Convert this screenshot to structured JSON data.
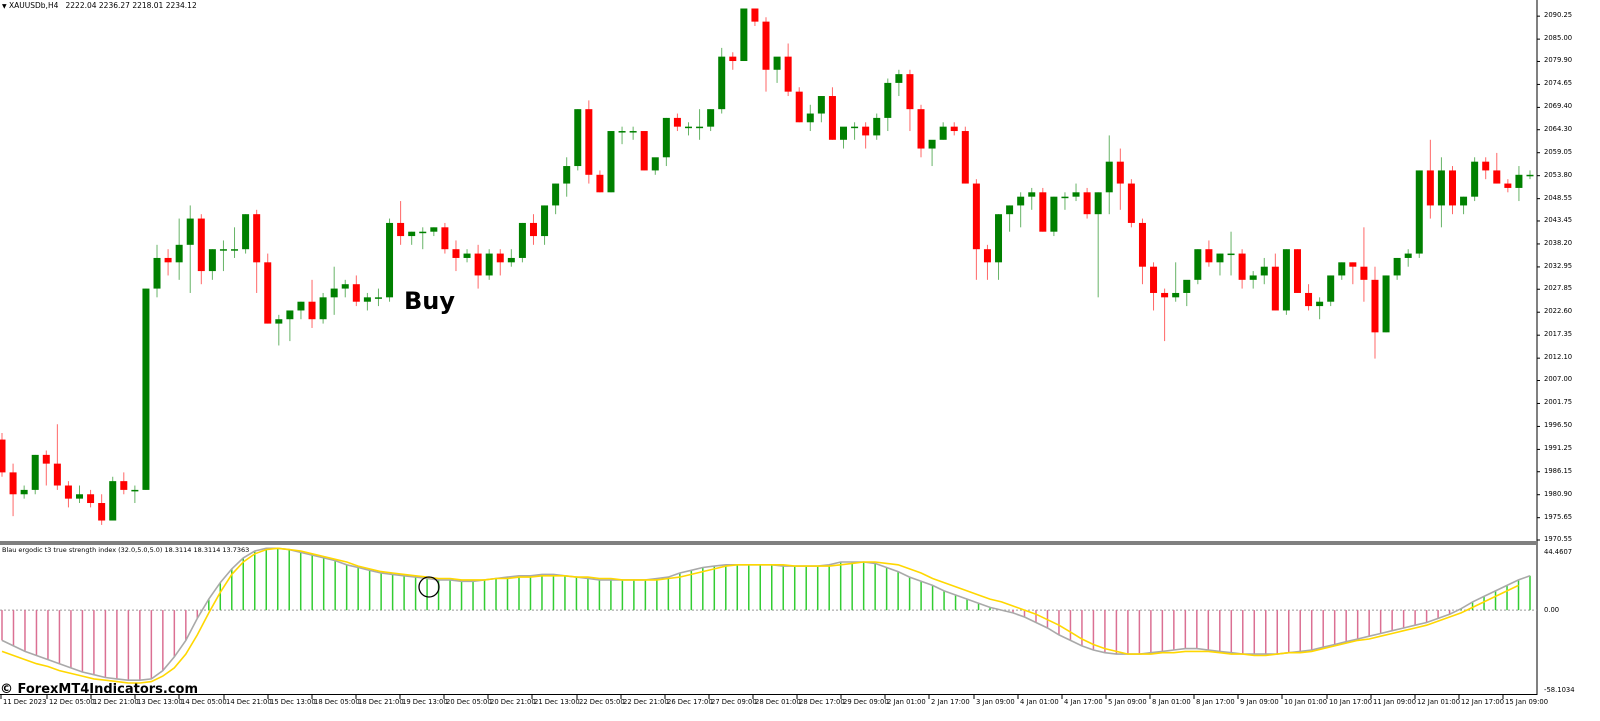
{
  "header": {
    "symbol_menu_icon": "triangle-down-icon",
    "symbol": "XAUUSDb,H4",
    "ohlc": "2222.04 2236.27 2218.01 2234.12"
  },
  "annotation": {
    "label": "Buy"
  },
  "watermark": "© ForexMT4Indicators.com",
  "indicator": {
    "label": "Blau ergodic t3 true strength index (32.0,5.0,5.0) 18.3114 18.3114 13.7363",
    "axis": [
      "44.4607",
      "0.00",
      "-58.1034"
    ],
    "colors": {
      "positive_hist": "#32CD32",
      "negative_hist": "#DB7093",
      "main_line": "#A9A9A9",
      "signal_line": "#FFD700"
    }
  },
  "price_axis": [
    "2090.25",
    "2085.00",
    "2079.90",
    "2074.65",
    "2069.40",
    "2064.30",
    "2059.05",
    "2053.80",
    "2048.55",
    "2043.45",
    "2038.20",
    "2032.95",
    "2027.85",
    "2022.60",
    "2017.35",
    "2012.10",
    "2007.00",
    "2001.75",
    "1996.50",
    "1991.25",
    "1986.15",
    "1980.90",
    "1975.65",
    "1970.55"
  ],
  "time_axis": [
    "11 Dec 2023",
    "12 Dec 05:00",
    "12 Dec 21:00",
    "13 Dec 13:00",
    "14 Dec 05:00",
    "14 Dec 21:00",
    "15 Dec 13:00",
    "18 Dec 05:00",
    "18 Dec 21:00",
    "19 Dec 13:00",
    "20 Dec 05:00",
    "20 Dec 21:00",
    "21 Dec 13:00",
    "22 Dec 05:00",
    "22 Dec 21:00",
    "26 Dec 17:00",
    "27 Dec 09:00",
    "28 Dec 01:00",
    "28 Dec 17:00",
    "29 Dec 09:00",
    "2 Jan 01:00",
    "2 Jan 17:00",
    "3 Jan 09:00",
    "4 Jan 01:00",
    "4 Jan 17:00",
    "5 Jan 09:00",
    "8 Jan 01:00",
    "8 Jan 17:00",
    "9 Jan 09:00",
    "10 Jan 01:00",
    "10 Jan 17:00",
    "11 Jan 09:00",
    "12 Jan 01:00",
    "12 Jan 17:00",
    "15 Jan 09:00"
  ],
  "colors": {
    "bull": "#008000",
    "bear": "#FF0000",
    "separator": "#808080"
  },
  "chart_data": [
    {
      "type": "candlestick",
      "title": "XAUUSDb,H4",
      "ylim": [
        1970.55,
        2092.5
      ],
      "xlabel": "",
      "ylabel": "",
      "note": "approx. OHLC read from pixels, one per H4 bar",
      "candles": [
        [
          1993.5,
          1995,
          1985,
          1986
        ],
        [
          1986,
          1988,
          1976,
          1981
        ],
        [
          1981,
          1983,
          1980,
          1982
        ],
        [
          1982,
          1990,
          1981,
          1990
        ],
        [
          1990,
          1991,
          1983,
          1988
        ],
        [
          1988,
          1997,
          1982,
          1983
        ],
        [
          1983,
          1984,
          1978,
          1980
        ],
        [
          1980,
          1983,
          1979,
          1981
        ],
        [
          1981,
          1982,
          1978,
          1979
        ],
        [
          1979,
          1981,
          1974,
          1975
        ],
        [
          1975,
          1985,
          1975,
          1984
        ],
        [
          1984,
          1986,
          1981,
          1982
        ],
        [
          1982,
          1983,
          1979,
          1982
        ],
        [
          1982,
          2028,
          1982,
          2028
        ],
        [
          2028,
          2038,
          2026,
          2035
        ],
        [
          2035,
          2037,
          2031,
          2034
        ],
        [
          2034,
          2044,
          2030,
          2038
        ],
        [
          2038,
          2047,
          2027,
          2044
        ],
        [
          2044,
          2045,
          2029,
          2032
        ],
        [
          2032,
          2037,
          2030,
          2037
        ],
        [
          2037,
          2039,
          2032,
          2037
        ],
        [
          2037,
          2042,
          2035,
          2037
        ],
        [
          2037,
          2045,
          2036,
          2045
        ],
        [
          2045,
          2046,
          2027,
          2034
        ],
        [
          2034,
          2036,
          2020,
          2020
        ],
        [
          2020,
          2022,
          2015,
          2021
        ],
        [
          2021,
          2022,
          2016,
          2023
        ],
        [
          2023,
          2025,
          2021,
          2025
        ],
        [
          2025,
          2030,
          2019,
          2021
        ],
        [
          2021,
          2027,
          2020,
          2026
        ],
        [
          2026,
          2033,
          2022,
          2028
        ],
        [
          2028,
          2030,
          2026,
          2029
        ],
        [
          2029,
          2031,
          2024,
          2025
        ],
        [
          2025,
          2027,
          2023,
          2026
        ],
        [
          2026,
          2028,
          2024,
          2026
        ],
        [
          2026,
          2044,
          2025,
          2043
        ],
        [
          2043,
          2048,
          2038,
          2040
        ],
        [
          2040,
          2041,
          2038,
          2041
        ],
        [
          2041,
          2042,
          2037,
          2041
        ],
        [
          2041,
          2042,
          2040,
          2042
        ],
        [
          2042,
          2043,
          2036,
          2037
        ],
        [
          2037,
          2039,
          2032,
          2035
        ],
        [
          2035,
          2037,
          2034,
          2036
        ],
        [
          2036,
          2038,
          2028,
          2031
        ],
        [
          2031,
          2037,
          2030,
          2036
        ],
        [
          2036,
          2037,
          2031,
          2034
        ],
        [
          2034,
          2037,
          2033,
          2035
        ],
        [
          2035,
          2043,
          2034,
          2043
        ],
        [
          2043,
          2045,
          2038,
          2040
        ],
        [
          2040,
          2047,
          2038,
          2047
        ],
        [
          2047,
          2052,
          2045,
          2052
        ],
        [
          2052,
          2058,
          2049,
          2056
        ],
        [
          2056,
          2069,
          2055,
          2069
        ],
        [
          2069,
          2071,
          2052,
          2054
        ],
        [
          2054,
          2055,
          2050,
          2050
        ],
        [
          2050,
          2064,
          2050,
          2064
        ],
        [
          2064,
          2065,
          2061,
          2064
        ],
        [
          2064,
          2065,
          2062,
          2064
        ],
        [
          2064,
          2064,
          2055,
          2055
        ],
        [
          2055,
          2056,
          2054,
          2058
        ],
        [
          2058,
          2067,
          2056,
          2067
        ],
        [
          2067,
          2068,
          2064,
          2065
        ],
        [
          2065,
          2066,
          2063,
          2065
        ],
        [
          2065,
          2069,
          2062,
          2065
        ],
        [
          2065,
          2069,
          2064,
          2069
        ],
        [
          2069,
          2083,
          2068,
          2081
        ],
        [
          2081,
          2082,
          2078,
          2080
        ],
        [
          2080,
          2092,
          2080,
          2092
        ],
        [
          2092,
          2092,
          2088,
          2089
        ],
        [
          2089,
          2090,
          2073,
          2078
        ],
        [
          2078,
          2080,
          2075,
          2081
        ],
        [
          2081,
          2084,
          2072,
          2073
        ],
        [
          2073,
          2074,
          2066,
          2066
        ],
        [
          2066,
          2070,
          2064,
          2068
        ],
        [
          2068,
          2072,
          2066,
          2072
        ],
        [
          2072,
          2074,
          2062,
          2062
        ],
        [
          2062,
          2063,
          2060,
          2065
        ],
        [
          2065,
          2066,
          2062,
          2065
        ],
        [
          2065,
          2066,
          2060,
          2063
        ],
        [
          2063,
          2068,
          2062,
          2067
        ],
        [
          2067,
          2076,
          2064,
          2075
        ],
        [
          2075,
          2078,
          2072,
          2077
        ],
        [
          2077,
          2078,
          2064,
          2069
        ],
        [
          2069,
          2070,
          2058,
          2060
        ],
        [
          2060,
          2061,
          2056,
          2062
        ],
        [
          2062,
          2066,
          2062,
          2065
        ],
        [
          2065,
          2066,
          2063,
          2064
        ],
        [
          2064,
          2065,
          2052,
          2052
        ],
        [
          2052,
          2053,
          2030,
          2037
        ],
        [
          2037,
          2038,
          2030,
          2034
        ],
        [
          2034,
          2045,
          2030,
          2045
        ],
        [
          2045,
          2047,
          2041,
          2047
        ],
        [
          2047,
          2050,
          2042,
          2049
        ],
        [
          2049,
          2051,
          2046,
          2050
        ],
        [
          2050,
          2051,
          2041,
          2041
        ],
        [
          2041,
          2049,
          2040,
          2049
        ],
        [
          2049,
          2050,
          2046,
          2049
        ],
        [
          2049,
          2052,
          2048,
          2050
        ],
        [
          2050,
          2051,
          2044,
          2045
        ],
        [
          2045,
          2050,
          2026,
          2050
        ],
        [
          2050,
          2063,
          2045,
          2057
        ],
        [
          2057,
          2060,
          2046,
          2052
        ],
        [
          2052,
          2053,
          2042,
          2043
        ],
        [
          2043,
          2044,
          2029,
          2033
        ],
        [
          2033,
          2034,
          2023,
          2027
        ],
        [
          2027,
          2028,
          2016,
          2026
        ],
        [
          2026,
          2034,
          2025,
          2027
        ],
        [
          2027,
          2029,
          2024,
          2030
        ],
        [
          2030,
          2037,
          2029,
          2037
        ],
        [
          2037,
          2039,
          2033,
          2034
        ],
        [
          2034,
          2036,
          2031,
          2036
        ],
        [
          2036,
          2041,
          2031,
          2036
        ],
        [
          2036,
          2037,
          2028,
          2030
        ],
        [
          2030,
          2032,
          2028,
          2031
        ],
        [
          2031,
          2035,
          2029,
          2033
        ],
        [
          2033,
          2036,
          2023,
          2023
        ],
        [
          2023,
          2037,
          2022,
          2037
        ],
        [
          2037,
          2037,
          2027,
          2027
        ],
        [
          2027,
          2029,
          2023,
          2024
        ],
        [
          2024,
          2026,
          2021,
          2025
        ],
        [
          2025,
          2031,
          2024,
          2031
        ],
        [
          2031,
          2034,
          2030,
          2034
        ],
        [
          2034,
          2034,
          2029,
          2033
        ],
        [
          2033,
          2042,
          2025,
          2030
        ],
        [
          2030,
          2033,
          2012,
          2018
        ],
        [
          2018,
          2031,
          2018,
          2031
        ],
        [
          2031,
          2035,
          2030,
          2035
        ],
        [
          2035,
          2037,
          2033,
          2036
        ],
        [
          2036,
          2055,
          2035,
          2055
        ],
        [
          2055,
          2062,
          2044,
          2047
        ],
        [
          2047,
          2058,
          2042,
          2055
        ],
        [
          2055,
          2056,
          2045,
          2047
        ],
        [
          2047,
          2049,
          2045,
          2049
        ],
        [
          2049,
          2058,
          2048,
          2057
        ],
        [
          2057,
          2058,
          2053,
          2055
        ],
        [
          2055,
          2059,
          2052,
          2052
        ],
        [
          2052,
          2053,
          2050,
          2051
        ],
        [
          2051,
          2056,
          2048,
          2054
        ],
        [
          2054,
          2055,
          2053,
          2054
        ]
      ]
    },
    {
      "type": "line+histogram",
      "title": "Blau ergodic t3 true strength index (32.0,5.0,5.0)",
      "ylim": [
        -58.1034,
        44.4607
      ],
      "series": [
        {
          "name": "histogram / main",
          "color_pos": "#32CD32",
          "color_neg": "#DB7093",
          "values": [
            -22,
            -26,
            -30,
            -33,
            -36,
            -39,
            -42,
            -45,
            -47,
            -49,
            -50,
            -51,
            -51,
            -50,
            -44,
            -34,
            -22,
            -6,
            8,
            20,
            30,
            38,
            43,
            45,
            45,
            44,
            42,
            40,
            38,
            36,
            33,
            31,
            29,
            27,
            26,
            25,
            24,
            23,
            22,
            22,
            21,
            21,
            22,
            23,
            24,
            25,
            25,
            26,
            26,
            25,
            24,
            23,
            22,
            22,
            22,
            22,
            22,
            23,
            24,
            27,
            29,
            31,
            32,
            33,
            33,
            33,
            33,
            33,
            32,
            32,
            32,
            32,
            33,
            35,
            35,
            35,
            34,
            31,
            28,
            24,
            21,
            18,
            14,
            11,
            8,
            5,
            2,
            0,
            -2,
            -5,
            -9,
            -13,
            -18,
            -22,
            -26,
            -29,
            -31,
            -32,
            -32,
            -32,
            -31,
            -30,
            -29,
            -28,
            -28,
            -29,
            -30,
            -31,
            -32,
            -32,
            -32,
            -32,
            -31,
            -30,
            -29,
            -27,
            -25,
            -23,
            -21,
            -19,
            -17,
            -15,
            -13,
            -11,
            -9,
            -6,
            -3,
            1,
            6,
            10,
            14,
            18,
            22,
            25
          ]
        },
        {
          "name": "signal (T3)",
          "color": "#FFD700",
          "values": [
            -30,
            -33,
            -36,
            -39,
            -41,
            -44,
            -46,
            -48,
            -50,
            -51,
            -52,
            -53,
            -53,
            -52,
            -48,
            -42,
            -32,
            -18,
            -2,
            13,
            26,
            35,
            41,
            44,
            45,
            44,
            43,
            41,
            39,
            37,
            35,
            32,
            30,
            28,
            27,
            26,
            25,
            24,
            23,
            23,
            22,
            22,
            22,
            23,
            23,
            24,
            24,
            25,
            25,
            25,
            24,
            24,
            23,
            23,
            22,
            22,
            22,
            22,
            23,
            24,
            26,
            28,
            30,
            32,
            33,
            33,
            33,
            33,
            33,
            32,
            32,
            32,
            32,
            33,
            34,
            35,
            35,
            34,
            33,
            30,
            27,
            23,
            20,
            17,
            14,
            11,
            8,
            6,
            3,
            0,
            -3,
            -7,
            -11,
            -16,
            -21,
            -25,
            -28,
            -30,
            -32,
            -32,
            -32,
            -31,
            -31,
            -30,
            -30,
            -30,
            -31,
            -32,
            -32,
            -33,
            -33,
            -32,
            -31,
            -31,
            -30,
            -28,
            -26,
            -24,
            -22,
            -21,
            -19,
            -17,
            -15,
            -13,
            -11,
            -8,
            -5,
            -2,
            2,
            6,
            10,
            14,
            18
          ]
        }
      ],
      "annotations": [
        {
          "type": "circle",
          "at": "~19 Dec 13:00 crossover"
        }
      ]
    }
  ]
}
